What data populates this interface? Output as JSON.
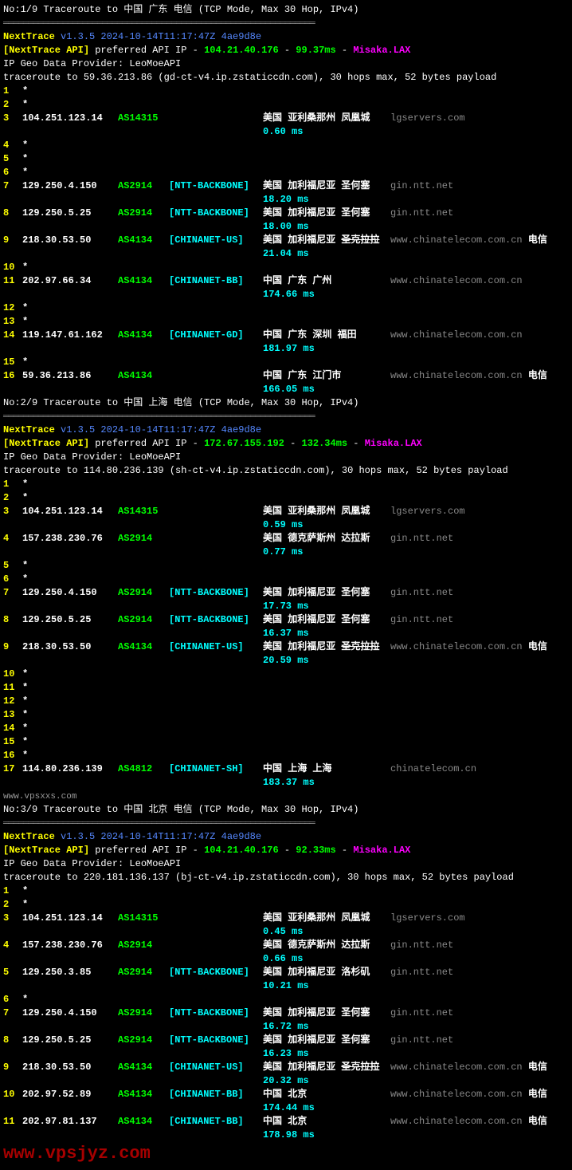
{
  "traces": [
    {
      "header": "No:1/9 Traceroute to 中国 广东 电信 (TCP Mode, Max 30 Hop, IPv4)",
      "divider": "═══════════════════════════════════════════════════════════════",
      "app": "NextTrace",
      "version": "v1.3.5 2024-10-14T11:17:47Z 4ae9d8e",
      "api_label": "[NextTrace API]",
      "api_text": " preferred API IP - ",
      "api_ip": "104.21.40.176",
      "api_sep": " - ",
      "api_rtt": "99.37ms",
      "api_sep2": " - ",
      "api_node": "Misaka.LAX",
      "geo": "IP Geo Data Provider: LeoMoeAPI",
      "cmd": "traceroute to 59.36.213.86 (gd-ct-v4.ip.zstaticcdn.com), 30 hops max, 52 bytes payload",
      "hops": [
        {
          "n": "1",
          "ip": "*"
        },
        {
          "n": "2",
          "ip": "*"
        },
        {
          "n": "3",
          "ip": "104.251.123.14",
          "asn": "AS14315",
          "net": "",
          "loc": "美国 亚利桑那州 凤凰城",
          "host": "lgservers.com",
          "rtt": "0.60 ms"
        },
        {
          "n": "4",
          "ip": "*"
        },
        {
          "n": "5",
          "ip": "*"
        },
        {
          "n": "6",
          "ip": "*"
        },
        {
          "n": "7",
          "ip": "129.250.4.150",
          "asn": "AS2914",
          "net": "[NTT-BACKBONE]",
          "loc": "美国 加利福尼亚 圣何塞",
          "host": "gin.ntt.net",
          "rtt": "18.20 ms"
        },
        {
          "n": "8",
          "ip": "129.250.5.25",
          "asn": "AS2914",
          "net": "[NTT-BACKBONE]",
          "loc": "美国 加利福尼亚 圣何塞",
          "host": "gin.ntt.net",
          "rtt": "18.00 ms"
        },
        {
          "n": "9",
          "ip": "218.30.53.50",
          "asn": "AS4134",
          "net": "[CHINANET-US]",
          "loc": "美国 加利福尼亚 ",
          "loc_strike": "圣克拉拉",
          "host": "www.chinatelecom.com.cn",
          "isp": "电信",
          "rtt": "21.04 ms"
        },
        {
          "n": "10",
          "ip": "*"
        },
        {
          "n": "11",
          "ip": "202.97.66.34",
          "asn": "AS4134",
          "net": "[CHINANET-BB]",
          "loc": "中国 广东 广州",
          "host": "www.chinatelecom.com.cn",
          "rtt": "174.66 ms"
        },
        {
          "n": "12",
          "ip": "*"
        },
        {
          "n": "13",
          "ip": "*"
        },
        {
          "n": "14",
          "ip": "119.147.61.162",
          "asn": "AS4134",
          "net": "[CHINANET-GD]",
          "loc": "中国 广东 深圳 福田",
          "host": "www.chinatelecom.com.cn",
          "rtt": "181.97 ms"
        },
        {
          "n": "15",
          "ip": "*"
        },
        {
          "n": "16",
          "ip": "59.36.213.86",
          "asn": "AS4134",
          "net": "",
          "loc": "中国 广东 江门市",
          "host": "www.chinatelecom.com.cn",
          "isp": "电信",
          "rtt": "166.05 ms"
        }
      ]
    },
    {
      "header": "No:2/9 Traceroute to 中国 上海 电信 (TCP Mode, Max 30 Hop, IPv4)",
      "divider": "═══════════════════════════════════════════════════════════════",
      "app": "NextTrace",
      "version": "v1.3.5 2024-10-14T11:17:47Z 4ae9d8e",
      "api_label": "[NextTrace API]",
      "api_text": " preferred API IP - ",
      "api_ip": "172.67.155.192",
      "api_sep": " - ",
      "api_rtt": "132.34ms",
      "api_sep2": " - ",
      "api_node": "Misaka.LAX",
      "geo": "IP Geo Data Provider: LeoMoeAPI",
      "cmd": "traceroute to 114.80.236.139 (sh-ct-v4.ip.zstaticcdn.com), 30 hops max, 52 bytes payload",
      "hops": [
        {
          "n": "1",
          "ip": "*"
        },
        {
          "n": "2",
          "ip": "*"
        },
        {
          "n": "3",
          "ip": "104.251.123.14",
          "asn": "AS14315",
          "net": "",
          "loc": "美国 亚利桑那州 凤凰城",
          "host": "lgservers.com",
          "rtt": "0.59 ms"
        },
        {
          "n": "4",
          "ip": "157.238.230.76",
          "asn": "AS2914",
          "net": "",
          "loc": "美国 德克萨斯州 达拉斯",
          "host": "gin.ntt.net",
          "rtt": "0.77 ms"
        },
        {
          "n": "5",
          "ip": "*"
        },
        {
          "n": "6",
          "ip": "*"
        },
        {
          "n": "7",
          "ip": "129.250.4.150",
          "asn": "AS2914",
          "net": "[NTT-BACKBONE]",
          "loc": "美国 加利福尼亚 圣何塞",
          "host": "gin.ntt.net",
          "rtt": "17.73 ms"
        },
        {
          "n": "8",
          "ip": "129.250.5.25",
          "asn": "AS2914",
          "net": "[NTT-BACKBONE]",
          "loc": "美国 加利福尼亚 圣何塞",
          "host": "gin.ntt.net",
          "rtt": "16.37 ms"
        },
        {
          "n": "9",
          "ip": "218.30.53.50",
          "asn": "AS4134",
          "net": "[CHINANET-US]",
          "loc": "美国 加利福尼亚 ",
          "loc_strike": "圣克拉拉",
          "host": "www.chinatelecom.com.cn",
          "isp": "电信",
          "rtt": "20.59 ms"
        },
        {
          "n": "10",
          "ip": "*"
        },
        {
          "n": "11",
          "ip": "*"
        },
        {
          "n": "12",
          "ip": "*"
        },
        {
          "n": "13",
          "ip": "*"
        },
        {
          "n": "14",
          "ip": "*"
        },
        {
          "n": "15",
          "ip": "*"
        },
        {
          "n": "16",
          "ip": "*"
        },
        {
          "n": "17",
          "ip": "114.80.236.139",
          "asn": "AS4812",
          "net": "[CHINANET-SH]",
          "loc": "中国 上海 上海",
          "host": "chinatelecom.cn",
          "rtt": "183.37 ms"
        }
      ]
    },
    {
      "header": "No:3/9 Traceroute to 中国 北京 电信 (TCP Mode, Max 30 Hop, IPv4)",
      "divider": "═══════════════════════════════════════════════════════════════",
      "app": "NextTrace",
      "version": "v1.3.5 2024-10-14T11:17:47Z 4ae9d8e",
      "api_label": "[NextTrace API]",
      "api_text": " preferred API IP - ",
      "api_ip": "104.21.40.176",
      "api_sep": " - ",
      "api_rtt": "92.33ms",
      "api_sep2": " - ",
      "api_node": "Misaka.LAX",
      "geo": "IP Geo Data Provider: LeoMoeAPI",
      "cmd": "traceroute to 220.181.136.137 (bj-ct-v4.ip.zstaticcdn.com), 30 hops max, 52 bytes payload",
      "hops": [
        {
          "n": "1",
          "ip": "*"
        },
        {
          "n": "2",
          "ip": "*"
        },
        {
          "n": "3",
          "ip": "104.251.123.14",
          "asn": "AS14315",
          "net": "",
          "loc": "美国 亚利桑那州 凤凰城",
          "host": "lgservers.com",
          "rtt": "0.45 ms"
        },
        {
          "n": "4",
          "ip": "157.238.230.76",
          "asn": "AS2914",
          "net": "",
          "loc": "美国 德克萨斯州 达拉斯",
          "host": "gin.ntt.net",
          "rtt": "0.66 ms"
        },
        {
          "n": "5",
          "ip": "129.250.3.85",
          "asn": "AS2914",
          "net": "[NTT-BACKBONE]",
          "loc": "美国 加利福尼亚 洛杉矶",
          "host": "gin.ntt.net",
          "rtt": "10.21 ms"
        },
        {
          "n": "6",
          "ip": "*"
        },
        {
          "n": "7",
          "ip": "129.250.4.150",
          "asn": "AS2914",
          "net": "[NTT-BACKBONE]",
          "loc": "美国 加利福尼亚 圣何塞",
          "host": "gin.ntt.net",
          "rtt": "16.72 ms"
        },
        {
          "n": "8",
          "ip": "129.250.5.25",
          "asn": "AS2914",
          "net": "[NTT-BACKBONE]",
          "loc": "美国 加利福尼亚 圣何塞",
          "host": "gin.ntt.net",
          "rtt": "16.23 ms"
        },
        {
          "n": "9",
          "ip": "218.30.53.50",
          "asn": "AS4134",
          "net": "[CHINANET-US]",
          "loc": "美国 加利福尼亚 ",
          "loc_strike": "圣克拉拉",
          "host": "www.chinatelecom.com.cn",
          "isp": "电信",
          "rtt": "20.32 ms"
        },
        {
          "n": "10",
          "ip": "202.97.52.89",
          "asn": "AS4134",
          "net": "[CHINANET-BB]",
          "loc": "中国 北京",
          "host": "www.chinatelecom.com.cn",
          "isp": "电信",
          "rtt": "174.44 ms"
        },
        {
          "n": "11",
          "ip": "202.97.81.137",
          "asn": "AS4134",
          "net": "[CHINANET-BB]",
          "loc": "中国 北京",
          "host": "www.chinatelecom.com.cn",
          "isp": "电信",
          "rtt": "178.98 ms"
        }
      ]
    }
  ],
  "watermark1": "www.vpsxxs.com",
  "watermark2": "www.vpsjyz.com"
}
